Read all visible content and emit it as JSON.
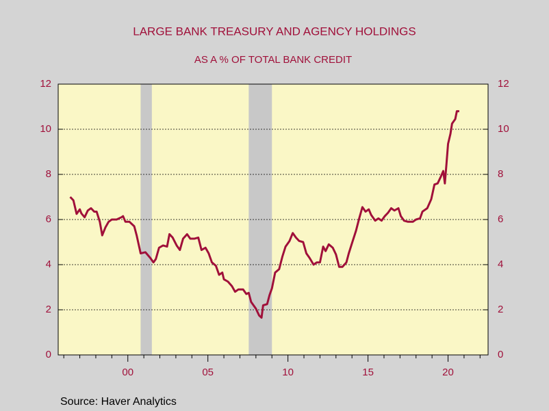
{
  "chart_data": {
    "type": "line",
    "title": "LARGE BANK TREASURY AND AGENCY HOLDINGS",
    "subtitle": "AS A % OF TOTAL BANK CREDIT",
    "source": "Source:  Haver Analytics",
    "x": [
      1996.4,
      1996.6,
      1996.8,
      1997.0,
      1997.1,
      1997.3,
      1997.5,
      1997.7,
      1997.9,
      1998.05,
      1998.25,
      1998.4,
      1998.6,
      1998.8,
      1999.0,
      1999.3,
      1999.6,
      1999.7,
      1999.85,
      2000.1,
      2000.4,
      2000.55,
      2000.8,
      2001.1,
      2001.4,
      2001.6,
      2001.75,
      2001.95,
      2002.2,
      2002.45,
      2002.6,
      2002.8,
      2003.05,
      2003.25,
      2003.45,
      2003.7,
      2003.9,
      2004.15,
      2004.4,
      2004.6,
      2004.85,
      2005.05,
      2005.25,
      2005.5,
      2005.7,
      2005.9,
      2006.0,
      2006.25,
      2006.5,
      2006.7,
      2006.9,
      2007.2,
      2007.4,
      2007.55,
      2007.7,
      2008.0,
      2008.2,
      2008.35,
      2008.45,
      2008.7,
      2008.85,
      2009.0,
      2009.2,
      2009.45,
      2009.65,
      2009.85,
      2010.1,
      2010.3,
      2010.5,
      2010.7,
      2010.95,
      2011.15,
      2011.35,
      2011.6,
      2011.8,
      2012.0,
      2012.2,
      2012.35,
      2012.55,
      2012.8,
      2013.0,
      2013.2,
      2013.4,
      2013.65,
      2013.8,
      2014.0,
      2014.25,
      2014.45,
      2014.65,
      2014.85,
      2015.05,
      2015.2,
      2015.45,
      2015.65,
      2015.85,
      2016.05,
      2016.25,
      2016.45,
      2016.65,
      2016.9,
      2017.05,
      2017.25,
      2017.5,
      2017.8,
      2018.0,
      2018.25,
      2018.4,
      2018.7,
      2018.95,
      2019.15,
      2019.35,
      2019.55,
      2019.7,
      2019.8,
      2019.9,
      2020.0,
      2020.15,
      2020.25,
      2020.45,
      2020.55,
      2020.7
    ],
    "series": [
      {
        "name": "Treasury and agency holdings",
        "color": "#a0103a",
        "values": [
          7.0,
          6.85,
          6.25,
          6.45,
          6.27,
          6.1,
          6.4,
          6.5,
          6.35,
          6.35,
          5.9,
          5.3,
          5.65,
          5.9,
          6.0,
          6.0,
          6.1,
          6.15,
          5.9,
          5.9,
          5.7,
          5.3,
          4.5,
          4.55,
          4.3,
          4.1,
          4.25,
          4.75,
          4.85,
          4.8,
          5.35,
          5.2,
          4.85,
          4.65,
          5.15,
          5.35,
          5.15,
          5.15,
          5.2,
          4.65,
          4.75,
          4.5,
          4.1,
          3.95,
          3.55,
          3.65,
          3.35,
          3.25,
          3.05,
          2.8,
          2.9,
          2.9,
          2.7,
          2.75,
          2.35,
          2.05,
          1.75,
          1.65,
          2.2,
          2.25,
          2.65,
          2.95,
          3.65,
          3.8,
          4.35,
          4.8,
          5.05,
          5.4,
          5.2,
          5.05,
          5.0,
          4.5,
          4.3,
          4.0,
          4.1,
          4.1,
          4.8,
          4.6,
          4.9,
          4.75,
          4.45,
          3.9,
          3.9,
          4.1,
          4.5,
          4.95,
          5.5,
          6.05,
          6.55,
          6.35,
          6.45,
          6.2,
          5.95,
          6.05,
          5.95,
          6.15,
          6.3,
          6.5,
          6.4,
          6.5,
          6.15,
          5.95,
          5.9,
          5.9,
          6.0,
          6.05,
          6.35,
          6.5,
          6.9,
          7.55,
          7.6,
          7.9,
          8.15,
          7.6,
          8.45,
          9.35,
          9.8,
          10.25,
          10.45,
          10.8,
          10.8
        ]
      }
    ],
    "shaded_periods": [
      [
        2000.8,
        2001.5
      ],
      [
        2007.55,
        2009.0
      ]
    ],
    "shade_color": "#c8c8c8",
    "plot_background": "#faf7c6",
    "xlim": [
      1995.65,
      2022.5
    ],
    "xticks": [
      {
        "value": 2000,
        "label": "00"
      },
      {
        "value": 2005,
        "label": "05"
      },
      {
        "value": 2010,
        "label": "10"
      },
      {
        "value": 2015,
        "label": "15"
      },
      {
        "value": 2020,
        "label": "20"
      }
    ],
    "xminor_ticks": [
      1996,
      1997,
      1998,
      1999,
      2001,
      2002,
      2003,
      2004,
      2006,
      2007,
      2008,
      2009,
      2011,
      2012,
      2013,
      2014,
      2016,
      2017,
      2018,
      2019,
      2021,
      2022
    ],
    "ylim": [
      0,
      12
    ],
    "yticks": [
      0,
      2,
      4,
      6,
      8,
      10,
      12
    ],
    "y2lim": [
      0,
      12
    ],
    "y2ticks": [
      0,
      2,
      4,
      6,
      8,
      10,
      12
    ],
    "grid": true
  }
}
